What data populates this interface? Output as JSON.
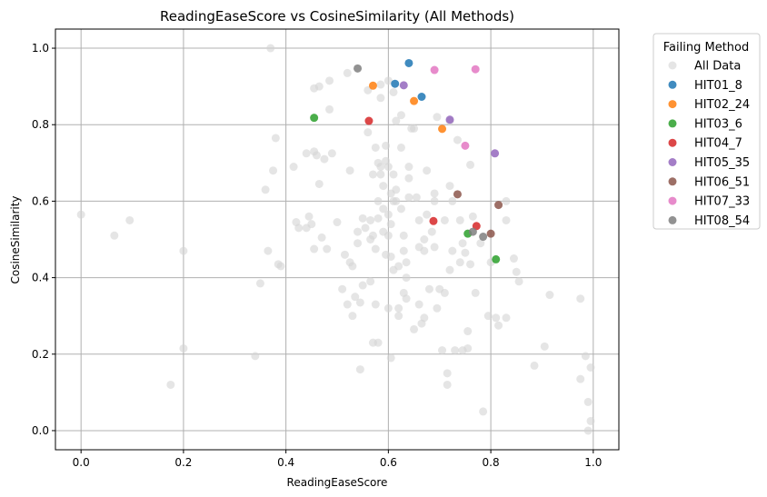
{
  "chart_data": {
    "type": "scatter",
    "title": "ReadingEaseScore vs CosineSimilarity (All Methods)",
    "xlabel": "ReadingEaseScore",
    "ylabel": "CosineSimilarity",
    "xlim": [
      -0.05,
      1.05
    ],
    "ylim": [
      -0.05,
      1.05
    ],
    "xticks": [
      0.0,
      0.2,
      0.4,
      0.6,
      0.8,
      1.0
    ],
    "xtick_labels": [
      "0.0",
      "0.2",
      "0.4",
      "0.6",
      "0.8",
      "1.0"
    ],
    "yticks": [
      0.0,
      0.2,
      0.4,
      0.6,
      0.8,
      1.0
    ],
    "ytick_labels": [
      "0.0",
      "0.2",
      "0.4",
      "0.6",
      "0.8",
      "1.0"
    ],
    "grid": true,
    "legend": {
      "title": "Failing Method",
      "placement": "outside-right"
    },
    "series": [
      {
        "name": "All Data",
        "color": "#d3d3d3",
        "points": [
          [
            0.0,
            0.565
          ],
          [
            0.065,
            0.51
          ],
          [
            0.095,
            0.55
          ],
          [
            0.175,
            0.12
          ],
          [
            0.2,
            0.47
          ],
          [
            0.2,
            0.215
          ],
          [
            0.34,
            0.195
          ],
          [
            0.35,
            0.385
          ],
          [
            0.36,
            0.63
          ],
          [
            0.365,
            0.47
          ],
          [
            0.37,
            1.0
          ],
          [
            0.375,
            0.68
          ],
          [
            0.38,
            0.765
          ],
          [
            0.385,
            0.435
          ],
          [
            0.39,
            0.43
          ],
          [
            0.415,
            0.69
          ],
          [
            0.42,
            0.545
          ],
          [
            0.425,
            0.53
          ],
          [
            0.44,
            0.725
          ],
          [
            0.44,
            0.53
          ],
          [
            0.445,
            0.56
          ],
          [
            0.45,
            0.54
          ],
          [
            0.455,
            0.475
          ],
          [
            0.455,
            0.73
          ],
          [
            0.46,
            0.72
          ],
          [
            0.455,
            0.895
          ],
          [
            0.465,
            0.9
          ],
          [
            0.465,
            0.645
          ],
          [
            0.47,
            0.505
          ],
          [
            0.475,
            0.71
          ],
          [
            0.48,
            0.475
          ],
          [
            0.485,
            0.84
          ],
          [
            0.485,
            0.915
          ],
          [
            0.49,
            0.725
          ],
          [
            0.5,
            0.545
          ],
          [
            0.51,
            0.37
          ],
          [
            0.515,
            0.46
          ],
          [
            0.52,
            0.33
          ],
          [
            0.52,
            0.935
          ],
          [
            0.525,
            0.68
          ],
          [
            0.525,
            0.44
          ],
          [
            0.53,
            0.43
          ],
          [
            0.53,
            0.3
          ],
          [
            0.535,
            0.35
          ],
          [
            0.54,
            0.52
          ],
          [
            0.54,
            0.49
          ],
          [
            0.545,
            0.335
          ],
          [
            0.545,
            0.16
          ],
          [
            0.55,
            0.38
          ],
          [
            0.55,
            0.555
          ],
          [
            0.555,
            0.53
          ],
          [
            0.56,
            0.78
          ],
          [
            0.56,
            0.89
          ],
          [
            0.565,
            0.55
          ],
          [
            0.565,
            0.5
          ],
          [
            0.565,
            0.39
          ],
          [
            0.57,
            0.67
          ],
          [
            0.57,
            0.51
          ],
          [
            0.57,
            0.23
          ],
          [
            0.575,
            0.74
          ],
          [
            0.575,
            0.475
          ],
          [
            0.575,
            0.33
          ],
          [
            0.58,
            0.7
          ],
          [
            0.58,
            0.6
          ],
          [
            0.58,
            0.555
          ],
          [
            0.58,
            0.23
          ],
          [
            0.585,
            0.67
          ],
          [
            0.585,
            0.69
          ],
          [
            0.585,
            0.87
          ],
          [
            0.585,
            0.905
          ],
          [
            0.59,
            0.58
          ],
          [
            0.59,
            0.52
          ],
          [
            0.59,
            0.64
          ],
          [
            0.595,
            0.705
          ],
          [
            0.595,
            0.745
          ],
          [
            0.595,
            0.46
          ],
          [
            0.6,
            0.69
          ],
          [
            0.6,
            0.565
          ],
          [
            0.6,
            0.51
          ],
          [
            0.6,
            0.32
          ],
          [
            0.6,
            0.915
          ],
          [
            0.605,
            0.62
          ],
          [
            0.605,
            0.54
          ],
          [
            0.605,
            0.455
          ],
          [
            0.605,
            0.19
          ],
          [
            0.61,
            0.67
          ],
          [
            0.61,
            0.6
          ],
          [
            0.61,
            0.42
          ],
          [
            0.61,
            0.885
          ],
          [
            0.615,
            0.6
          ],
          [
            0.615,
            0.81
          ],
          [
            0.615,
            0.63
          ],
          [
            0.62,
            0.43
          ],
          [
            0.62,
            0.32
          ],
          [
            0.62,
            0.3
          ],
          [
            0.625,
            0.825
          ],
          [
            0.625,
            0.74
          ],
          [
            0.625,
            0.58
          ],
          [
            0.63,
            0.47
          ],
          [
            0.63,
            0.36
          ],
          [
            0.63,
            0.51
          ],
          [
            0.635,
            0.44
          ],
          [
            0.635,
            0.4
          ],
          [
            0.635,
            0.345
          ],
          [
            0.64,
            0.69
          ],
          [
            0.64,
            0.66
          ],
          [
            0.64,
            0.61
          ],
          [
            0.645,
            0.79
          ],
          [
            0.65,
            0.79
          ],
          [
            0.65,
            0.265
          ],
          [
            0.655,
            0.61
          ],
          [
            0.66,
            0.55
          ],
          [
            0.66,
            0.48
          ],
          [
            0.66,
            0.33
          ],
          [
            0.665,
            0.28
          ],
          [
            0.67,
            0.5
          ],
          [
            0.67,
            0.47
          ],
          [
            0.67,
            0.295
          ],
          [
            0.675,
            0.68
          ],
          [
            0.675,
            0.565
          ],
          [
            0.68,
            0.37
          ],
          [
            0.685,
            0.52
          ],
          [
            0.69,
            0.6
          ],
          [
            0.69,
            0.62
          ],
          [
            0.69,
            0.48
          ],
          [
            0.695,
            0.82
          ],
          [
            0.695,
            0.32
          ],
          [
            0.7,
            0.37
          ],
          [
            0.705,
            0.21
          ],
          [
            0.71,
            0.55
          ],
          [
            0.71,
            0.36
          ],
          [
            0.715,
            0.12
          ],
          [
            0.715,
            0.15
          ],
          [
            0.72,
            0.64
          ],
          [
            0.72,
            0.42
          ],
          [
            0.72,
            0.81
          ],
          [
            0.725,
            0.6
          ],
          [
            0.725,
            0.47
          ],
          [
            0.73,
            0.21
          ],
          [
            0.735,
            0.76
          ],
          [
            0.74,
            0.55
          ],
          [
            0.74,
            0.44
          ],
          [
            0.745,
            0.49
          ],
          [
            0.745,
            0.21
          ],
          [
            0.75,
            0.465
          ],
          [
            0.755,
            0.26
          ],
          [
            0.755,
            0.215
          ],
          [
            0.76,
            0.435
          ],
          [
            0.76,
            0.695
          ],
          [
            0.765,
            0.56
          ],
          [
            0.77,
            0.36
          ],
          [
            0.78,
            0.49
          ],
          [
            0.785,
            0.05
          ],
          [
            0.795,
            0.3
          ],
          [
            0.8,
            0.44
          ],
          [
            0.81,
            0.295
          ],
          [
            0.815,
            0.275
          ],
          [
            0.83,
            0.6
          ],
          [
            0.83,
            0.55
          ],
          [
            0.83,
            0.295
          ],
          [
            0.845,
            0.45
          ],
          [
            0.85,
            0.415
          ],
          [
            0.855,
            0.39
          ],
          [
            0.885,
            0.17
          ],
          [
            0.905,
            0.22
          ],
          [
            0.915,
            0.355
          ],
          [
            0.975,
            0.345
          ],
          [
            0.975,
            0.135
          ],
          [
            0.985,
            0.195
          ],
          [
            0.99,
            0.075
          ],
          [
            0.99,
            0.0
          ],
          [
            0.995,
            0.165
          ],
          [
            0.995,
            0.025
          ]
        ]
      },
      {
        "name": "HIT01_8",
        "color": "#1f77b4",
        "points": [
          [
            0.613,
            0.907
          ],
          [
            0.64,
            0.961
          ],
          [
            0.665,
            0.873
          ]
        ]
      },
      {
        "name": "HIT02_24",
        "color": "#ff7f0e",
        "points": [
          [
            0.57,
            0.902
          ],
          [
            0.65,
            0.862
          ],
          [
            0.705,
            0.789
          ]
        ]
      },
      {
        "name": "HIT03_6",
        "color": "#2ca02c",
        "points": [
          [
            0.455,
            0.818
          ],
          [
            0.755,
            0.515
          ],
          [
            0.81,
            0.448
          ]
        ]
      },
      {
        "name": "HIT04_7",
        "color": "#d62728",
        "points": [
          [
            0.562,
            0.81
          ],
          [
            0.688,
            0.548
          ],
          [
            0.772,
            0.535
          ]
        ]
      },
      {
        "name": "HIT05_35",
        "color": "#9467bd",
        "points": [
          [
            0.63,
            0.903
          ],
          [
            0.72,
            0.813
          ],
          [
            0.808,
            0.725
          ]
        ]
      },
      {
        "name": "HIT06_51",
        "color": "#8c564b",
        "points": [
          [
            0.735,
            0.618
          ],
          [
            0.8,
            0.515
          ],
          [
            0.815,
            0.59
          ]
        ]
      },
      {
        "name": "HIT07_33",
        "color": "#e377c2",
        "points": [
          [
            0.69,
            0.943
          ],
          [
            0.75,
            0.745
          ],
          [
            0.77,
            0.945
          ]
        ]
      },
      {
        "name": "HIT08_54",
        "color": "#7f7f7f",
        "points": [
          [
            0.54,
            0.947
          ],
          [
            0.765,
            0.52
          ],
          [
            0.785,
            0.507
          ]
        ]
      }
    ]
  }
}
